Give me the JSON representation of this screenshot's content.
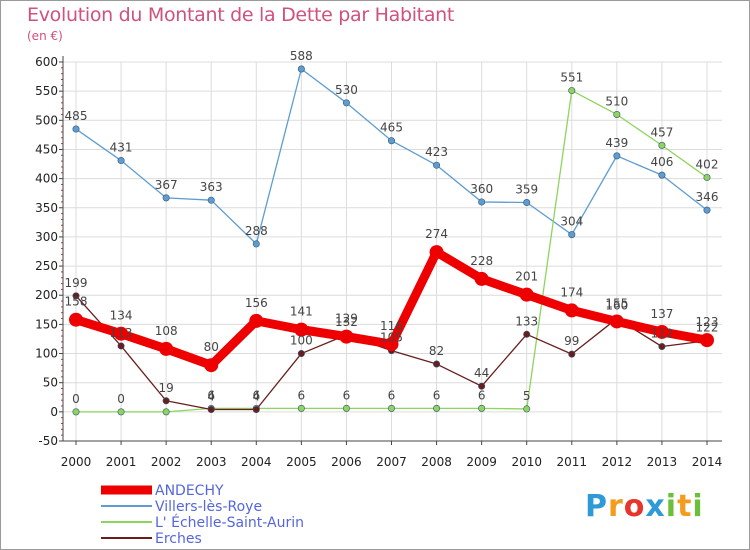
{
  "chart_data": {
    "type": "line",
    "title": "Evolution du Montant de la Dette par Habitant",
    "ylabel": "(en €)",
    "xlabel": "",
    "x": [
      "2000",
      "2001",
      "2002",
      "2003",
      "2004",
      "2005",
      "2006",
      "2007",
      "2008",
      "2009",
      "2010",
      "2011",
      "2012",
      "2013",
      "2014"
    ],
    "ylim": [
      -50,
      600
    ],
    "yticks": [
      -50,
      0,
      50,
      100,
      150,
      200,
      250,
      300,
      350,
      400,
      450,
      500,
      550,
      600
    ],
    "grid": true,
    "legend_position": "bottom-left",
    "series": [
      {
        "name": "ANDECHY",
        "color": "#ee0000",
        "values": [
          158,
          134,
          108,
          80,
          156,
          141,
          129,
          116,
          274,
          228,
          201,
          174,
          155,
          137,
          123
        ],
        "labels": [
          "158",
          "134",
          "108",
          "80",
          "156",
          "141",
          "129",
          "116",
          "274",
          "228",
          "201",
          "174",
          "155",
          "137",
          "123"
        ]
      },
      {
        "name": "Villers-lès-Roye",
        "color": "#5f9dd0",
        "values": [
          485,
          431,
          367,
          363,
          288,
          588,
          530,
          465,
          423,
          360,
          359,
          304,
          439,
          406,
          346
        ],
        "labels": [
          "485",
          "431",
          "367",
          "363",
          "288",
          "588",
          "530",
          "465",
          "423",
          "360",
          "359",
          "304",
          "439",
          "406",
          "346"
        ]
      },
      {
        "name": "L' Échelle-Saint-Aurin",
        "color": "#8ed45e",
        "values": [
          0,
          0,
          0,
          6,
          6,
          6,
          6,
          6,
          6,
          6,
          5,
          551,
          510,
          457,
          402
        ],
        "labels": [
          "0",
          "0",
          "",
          "6",
          "6",
          "6",
          "6",
          "6",
          "6",
          "6",
          "5",
          "551",
          "510",
          "457",
          "402"
        ]
      },
      {
        "name": "Erches",
        "color": "#6a1d1d",
        "values": [
          199,
          113,
          19,
          4,
          4,
          100,
          132,
          105,
          82,
          44,
          133,
          99,
          160,
          112,
          122
        ],
        "labels": [
          "199",
          "113",
          "19",
          "4",
          "4",
          "100",
          "132",
          "105",
          "82",
          "44",
          "133",
          "99",
          "160",
          "112",
          "122"
        ]
      }
    ]
  },
  "logo": {
    "text": "Proxiti",
    "letters": [
      "P",
      "r",
      "o",
      "x",
      "i",
      "t",
      "i"
    ],
    "colors": [
      "#2e9ad8",
      "#f39c1e",
      "#e8352c",
      "#2e9ad8",
      "#6cbe3b",
      "#f39c1e",
      "#6cbe3b"
    ]
  }
}
